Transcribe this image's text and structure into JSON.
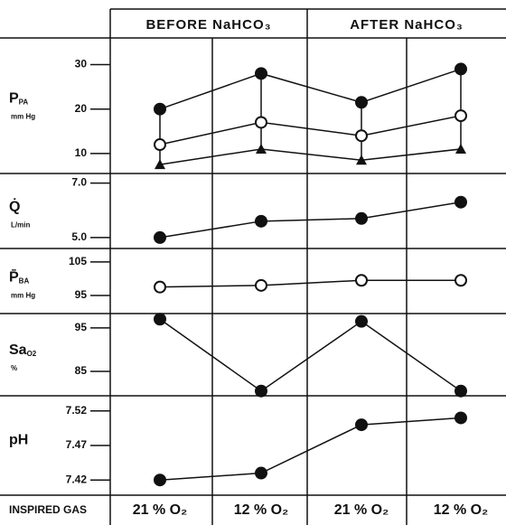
{
  "chart_data": [
    {
      "type": "line",
      "groups": [
        "BEFORE NaHCO₃",
        "AFTER NaHCO₃"
      ],
      "ylabel": {
        "symbol": "P",
        "subscript": "PA",
        "unit": "mm Hg"
      },
      "ylim": [
        5.5,
        36
      ],
      "yticks": [
        10,
        20,
        30
      ],
      "range_bars": true,
      "series": [
        {
          "marker": "filled-circle",
          "color": "#111",
          "values": [
            20,
            28,
            21.5,
            29
          ]
        },
        {
          "marker": "open-circle",
          "color": "#111",
          "values": [
            12,
            17,
            14,
            18.5
          ]
        },
        {
          "marker": "filled-triangle",
          "color": "#111",
          "values": [
            7.5,
            11,
            8.5,
            11
          ]
        }
      ]
    },
    {
      "type": "line",
      "ylabel": {
        "symbol": "Q̇",
        "unit": "L/min"
      },
      "ylim": [
        4.6,
        7.35
      ],
      "yticks": [
        {
          "value": 5,
          "label": "5.0"
        },
        {
          "value": 7,
          "label": "7.0"
        }
      ],
      "series": [
        {
          "marker": "filled-circle",
          "color": "#111",
          "values": [
            5.0,
            5.6,
            5.7,
            6.3
          ]
        }
      ]
    },
    {
      "type": "line",
      "ylabel": {
        "symbol": "P̄",
        "subscript": "BA",
        "unit": "mm Hg"
      },
      "ylim": [
        89.6,
        109
      ],
      "yticks": [
        95,
        105
      ],
      "series": [
        {
          "marker": "open-circle",
          "color": "#111",
          "values": [
            97.5,
            98,
            99.5,
            99.5
          ]
        }
      ]
    },
    {
      "type": "line",
      "ylabel": {
        "symbol": "Sa",
        "subscript": "O2",
        "unit": "%"
      },
      "ylim": [
        79.4,
        98.3
      ],
      "yticks": [
        85,
        95
      ],
      "series": [
        {
          "marker": "filled-circle",
          "color": "#111",
          "values": [
            97,
            80.5,
            96.5,
            80.5
          ]
        }
      ]
    },
    {
      "type": "line",
      "ylabel": {
        "symbol": "pH"
      },
      "ylim": [
        7.398,
        7.542
      ],
      "yticks": [
        7.42,
        7.47,
        7.52
      ],
      "x_title": "INSPIRED GAS",
      "categories": [
        "21 % O₂",
        "12 % O₂",
        "21 % O₂",
        "12 % O₂"
      ],
      "series": [
        {
          "marker": "filled-circle",
          "color": "#111",
          "values": [
            7.42,
            7.43,
            7.5,
            7.51
          ]
        }
      ]
    }
  ]
}
